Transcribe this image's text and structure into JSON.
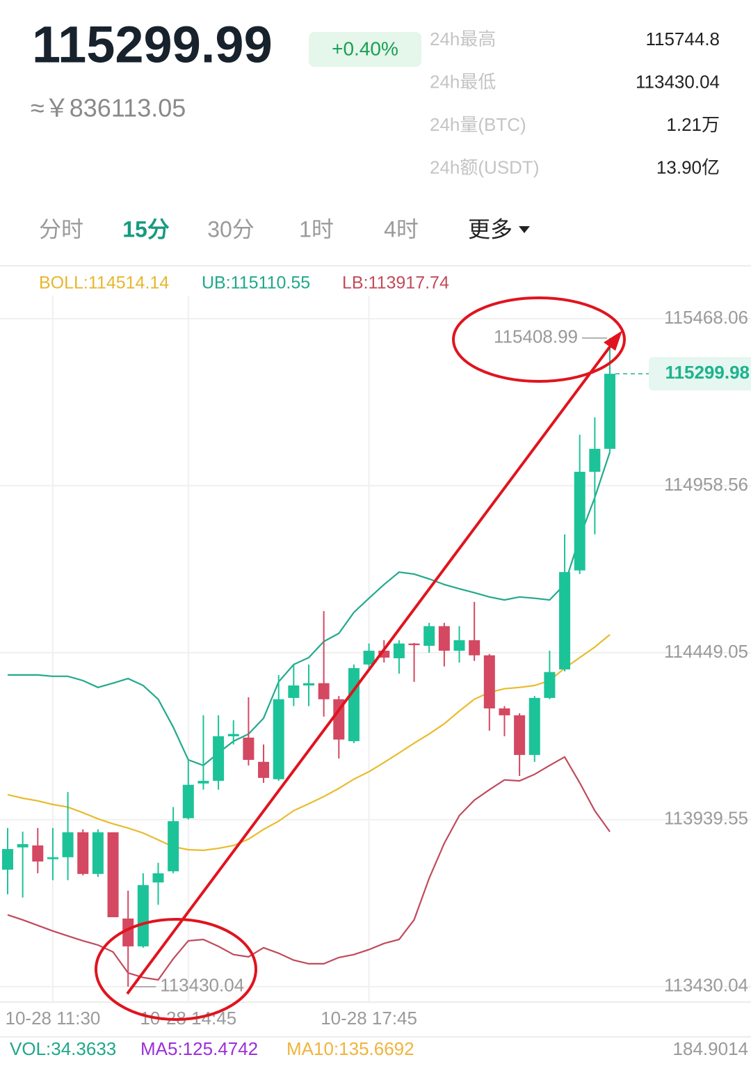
{
  "header": {
    "price": "115299.99",
    "change": "+0.40%",
    "cny": "≈￥836113.05"
  },
  "stats": [
    {
      "label": "24h最高",
      "value": "115744.8"
    },
    {
      "label": "24h最低",
      "value": "113430.04"
    },
    {
      "label": "24h量(BTC)",
      "value": "1.21万"
    },
    {
      "label": "24h额(USDT)",
      "value": "13.90亿"
    }
  ],
  "tabs": [
    "分时",
    "15分",
    "30分",
    "1时",
    "4时",
    "更多"
  ],
  "active_tab": 1,
  "indicators": {
    "boll": "BOLL:114514.14",
    "ub": "UB:115110.55",
    "lb": "LB:113917.74"
  },
  "chart_data": {
    "type": "candlestick",
    "categories": [
      null,
      null,
      null,
      "10-28 11:30",
      null,
      null,
      null,
      null,
      null,
      null,
      null,
      null,
      "10-28 14:45",
      null,
      null,
      null,
      null,
      null,
      null,
      null,
      null,
      null,
      null,
      null,
      "10-28 17:45",
      null,
      null,
      null,
      null,
      null,
      null,
      null,
      null,
      null,
      null,
      null,
      null,
      null,
      null,
      null,
      null
    ],
    "open": [
      113787,
      113855,
      113861,
      113819,
      113825,
      113901,
      113774,
      113901,
      113638,
      113553,
      113748,
      113782,
      113944,
      114050,
      114058,
      114194,
      114190,
      114116,
      114063,
      114311,
      114349,
      114356,
      114307,
      114179,
      114413,
      114455,
      114432,
      114477,
      114470,
      114530,
      114455,
      114487,
      114441,
      114279,
      114258,
      114137,
      114311,
      114398,
      114700,
      115001,
      115071
    ],
    "high": [
      113914,
      113903,
      113914,
      113914,
      114024,
      113910,
      113910,
      113901,
      113723,
      113776,
      113808,
      113978,
      114122,
      114258,
      114258,
      114243,
      114313,
      114169,
      114381,
      114413,
      114413,
      114576,
      114317,
      114413,
      114477,
      114487,
      114487,
      114479,
      114540,
      114540,
      114530,
      114604,
      114445,
      114286,
      114264,
      114317,
      114455,
      114810,
      115114,
      115167,
      115408.99
    ],
    "low": [
      113712,
      113702,
      113776,
      113755,
      113755,
      113770,
      113765,
      113642,
      113430.04,
      113549,
      113680,
      113776,
      113940,
      114031,
      114031,
      114169,
      114105,
      114052,
      114058,
      114286,
      114286,
      114254,
      114126,
      114173,
      114398,
      114419,
      114385,
      114360,
      114449,
      114407,
      114419,
      114424,
      114211,
      114194,
      114073,
      114116,
      114307,
      114392,
      114689,
      114810,
      115061
    ],
    "close": [
      113850,
      113865,
      113812,
      113825,
      113901,
      113774,
      113901,
      113642,
      113553,
      113740,
      113776,
      113935,
      114046,
      114058,
      114194,
      114201,
      114122,
      114067,
      114307,
      114349,
      114356,
      114307,
      114184,
      114402,
      114455,
      114434,
      114477,
      114472,
      114530,
      114455,
      114487,
      114441,
      114279,
      114258,
      114137,
      114311,
      114390,
      114695,
      115001,
      115071,
      115299.98
    ],
    "up_color": "#1cc398",
    "down_color": "#d44862",
    "bands": [
      {
        "color": "#e9bb2c",
        "values": [
          114016,
          114005,
          113997,
          113986,
          113978,
          113961,
          113942,
          113927,
          113914,
          113899,
          113878,
          113857,
          113848,
          113846,
          113852,
          113861,
          113880,
          113910,
          113935,
          113967,
          113988,
          114010,
          114035,
          114063,
          114086,
          114114,
          114143,
          114173,
          114201,
          114232,
          114271,
          114307,
          114328,
          114339,
          114343,
          114349,
          114364,
          114402,
          114434,
          114466,
          114504
        ]
      },
      {
        "color": "#22a98c",
        "values": [
          114381,
          114381,
          114381,
          114377,
          114377,
          114364,
          114343,
          114356,
          114370,
          114349,
          114307,
          114222,
          114122,
          114105,
          114143,
          114179,
          114201,
          114249,
          114360,
          114413,
          114434,
          114483,
          114508,
          114572,
          114615,
          114657,
          114695,
          114689,
          114674,
          114657,
          114644,
          114632,
          114619,
          114610,
          114619,
          114615,
          114610,
          114657,
          114801,
          114922,
          115061
        ]
      },
      {
        "color": "#c04a5c",
        "values": [
          113649,
          113634,
          113617,
          113600,
          113585,
          113570,
          113557,
          113536,
          113472,
          113458,
          113451,
          113515,
          113570,
          113574,
          113553,
          113528,
          113521,
          113549,
          113532,
          113511,
          113500,
          113500,
          113519,
          113528,
          113543,
          113562,
          113574,
          113634,
          113761,
          113867,
          113952,
          113999,
          114031,
          114061,
          114058,
          114078,
          114105,
          114131,
          114052,
          113967,
          113903
        ]
      }
    ],
    "ylim": [
      113383,
      115538
    ],
    "yticks": [
      115468.06,
      114958.56,
      114449.05,
      113939.55,
      113430.04
    ],
    "grid": true
  },
  "volume": {
    "vol": "VOL:34.3633",
    "ma5": "MA5:125.4742",
    "ma10": "MA10:135.6692",
    "max": "184.9014"
  }
}
